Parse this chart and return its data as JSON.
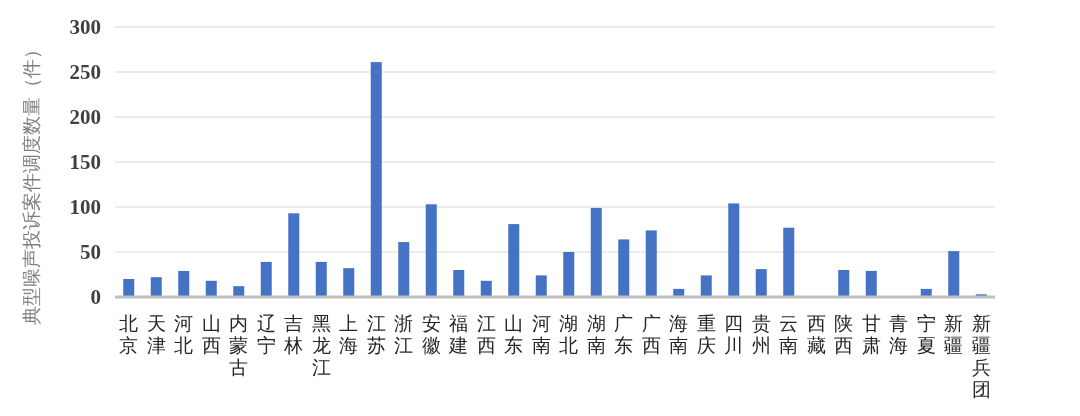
{
  "chart_data": {
    "type": "bar",
    "ylabel": "典型噪声投诉案件调度数量（件）",
    "categories": [
      "北京",
      "天津",
      "河北",
      "山西",
      "内蒙古",
      "辽宁",
      "吉林",
      "黑龙江",
      "上海",
      "江苏",
      "浙江",
      "安徽",
      "福建",
      "江西",
      "山东",
      "河南",
      "湖北",
      "湖南",
      "广东",
      "广西",
      "海南",
      "重庆",
      "四川",
      "贵州",
      "云南",
      "西藏",
      "陕西",
      "甘肃",
      "青海",
      "宁夏",
      "新疆",
      "新疆兵团"
    ],
    "values": [
      20,
      22,
      29,
      18,
      12,
      39,
      93,
      39,
      32,
      261,
      61,
      103,
      30,
      18,
      81,
      24,
      50,
      99,
      64,
      74,
      9,
      24,
      104,
      31,
      77,
      0,
      30,
      29,
      0,
      9,
      51,
      3
    ],
    "color": "#4472c4",
    "ylim": [
      0,
      300
    ],
    "yticks": [
      0,
      50,
      100,
      150,
      200,
      250,
      300
    ],
    "grid": "y"
  }
}
